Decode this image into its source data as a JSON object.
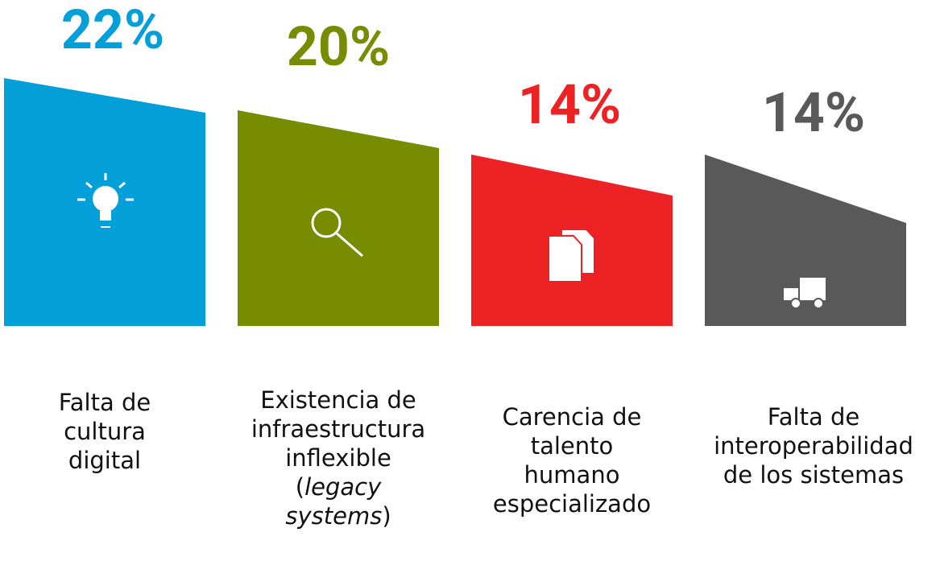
{
  "items": [
    {
      "value_label": "22%",
      "color": "#039fd8",
      "label": [
        [
          {
            "text": "Falta de"
          }
        ],
        [
          {
            "text": "cultura"
          }
        ],
        [
          {
            "text": "digital"
          }
        ]
      ]
    },
    {
      "value_label": "20%",
      "color": "#778c00",
      "label": [
        [
          {
            "text": "Existencia de"
          }
        ],
        [
          {
            "text": "infraestructura"
          }
        ],
        [
          {
            "text": "inflexible"
          }
        ],
        [
          {
            "text": "("
          },
          {
            "text": "legacy",
            "italic": true
          }
        ],
        [
          {
            "text": "systems",
            "italic": true
          },
          {
            "text": ")"
          }
        ]
      ]
    },
    {
      "value_label": "14%",
      "color": "#ec2224",
      "label": [
        [
          {
            "text": "Carencia de"
          }
        ],
        [
          {
            "text": "talento"
          }
        ],
        [
          {
            "text": "humano"
          }
        ],
        [
          {
            "text": "especializado"
          }
        ]
      ]
    },
    {
      "value_label": "14%",
      "color": "#595959",
      "label": [
        [
          {
            "text": "Falta de"
          }
        ],
        [
          {
            "text": "interoperabilidad"
          }
        ],
        [
          {
            "text": "de los sistemas"
          }
        ]
      ]
    }
  ]
}
